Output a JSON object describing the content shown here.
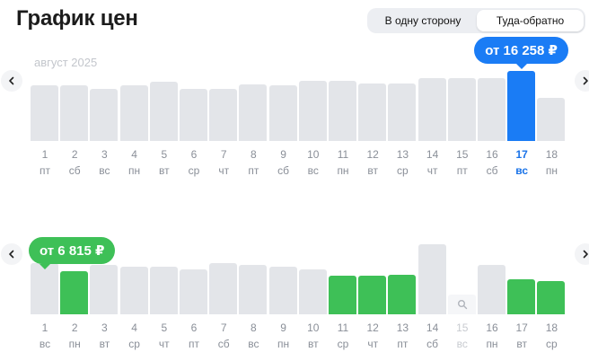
{
  "header": {
    "title": "График цен",
    "toggle": [
      "В одну сторону",
      "Туда-обратно"
    ],
    "active_index": 1
  },
  "colors": {
    "bar_default": "#e3e5e9",
    "bar_selected": "#1a7cf5",
    "bar_cheapest": "#3ec057",
    "text_muted": "#8a8f98",
    "text_selected": "#1a73e8"
  },
  "chart_data": [
    {
      "type": "bar",
      "month_label": "август 2025",
      "days": [
        "1",
        "2",
        "3",
        "4",
        "5",
        "6",
        "7",
        "8",
        "9",
        "10",
        "11",
        "12",
        "13",
        "14",
        "15",
        "16",
        "17",
        "18"
      ],
      "weekdays": [
        "пт",
        "сб",
        "вс",
        "пн",
        "вт",
        "ср",
        "чт",
        "пт",
        "сб",
        "вс",
        "пн",
        "вт",
        "ср",
        "чт",
        "пт",
        "сб",
        "вс",
        "пн"
      ],
      "values": [
        0.8,
        0.8,
        0.74,
        0.8,
        0.85,
        0.74,
        0.74,
        0.81,
        0.8,
        0.86,
        0.86,
        0.82,
        0.82,
        0.9,
        0.9,
        0.9,
        1.0,
        0.62
      ],
      "highlight": [
        0,
        0,
        0,
        0,
        0,
        0,
        0,
        0,
        0,
        0,
        0,
        0,
        0,
        0,
        0,
        0,
        1,
        0
      ],
      "selected_index": 16,
      "price_label": "от 16 258 ₽",
      "price_label_index": 16
    },
    {
      "type": "bar",
      "month_label": "",
      "days": [
        "1",
        "2",
        "3",
        "4",
        "5",
        "6",
        "7",
        "8",
        "9",
        "10",
        "11",
        "12",
        "13",
        "14",
        "15",
        "16",
        "17",
        "18"
      ],
      "weekdays": [
        "вс",
        "пн",
        "вт",
        "ср",
        "чт",
        "пт",
        "сб",
        "вс",
        "пн",
        "вт",
        "ср",
        "чт",
        "пт",
        "сб",
        "вс",
        "пн",
        "вт",
        "ср"
      ],
      "values": [
        0.73,
        0.61,
        0.7,
        0.68,
        0.68,
        0.64,
        0.73,
        0.71,
        0.68,
        0.64,
        0.55,
        0.55,
        0.56,
        1.0,
        0.0,
        0.7,
        0.5,
        0.48
      ],
      "highlight": [
        0,
        2,
        0,
        0,
        0,
        0,
        0,
        0,
        0,
        0,
        2,
        2,
        2,
        0,
        0,
        0,
        2,
        2
      ],
      "no_data_index": 14,
      "selected_index": -1,
      "price_label": "от 6 815 ₽",
      "price_label_index": 0
    }
  ]
}
